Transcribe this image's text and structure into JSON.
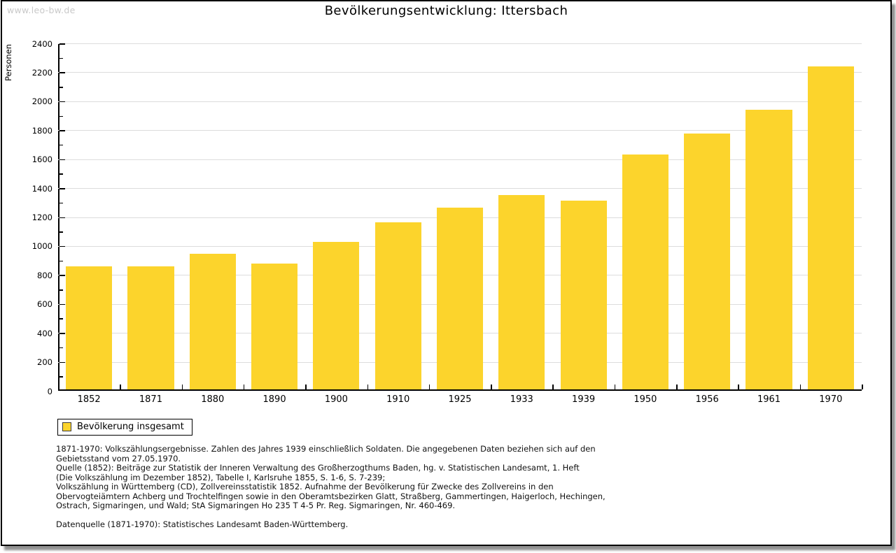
{
  "watermark": "www.leo-bw.de",
  "header": {
    "title": "Bevölkerungsentwicklung: Ittersbach"
  },
  "colors": {
    "bar_fill": "#FCD42C",
    "legend_swatch_border": "#3c3c3c",
    "gridline": "#dcdcdc",
    "axis": "#000000",
    "watermark_text": "#c9c9c9",
    "page_shadow": "#919191"
  },
  "chart_data": {
    "type": "bar",
    "title": "Bevölkerungsentwicklung: Ittersbach",
    "xlabel": "",
    "ylabel": "Personen",
    "categories": [
      "1852",
      "1871",
      "1880",
      "1890",
      "1900",
      "1910",
      "1925",
      "1933",
      "1939",
      "1950",
      "1956",
      "1961",
      "1970"
    ],
    "values": [
      860,
      860,
      945,
      880,
      1030,
      1165,
      1265,
      1350,
      1315,
      1630,
      1775,
      1940,
      2240
    ],
    "series_name": "Bevölkerung insgesamt",
    "ylim": [
      0,
      2400
    ],
    "ytick_step": 200,
    "yminor_step": 100,
    "grid": "horizontal-only",
    "legend_position": "bottom-left",
    "bar_color": "#FCD42C"
  },
  "legend": {
    "label": "Bevölkerung insgesamt"
  },
  "footer": {
    "lines": [
      "1871-1970: Volkszählungsergebnisse. Zahlen des Jahres 1939 einschließlich Soldaten. Die angegebenen Daten beziehen sich auf den",
      "Gebietsstand vom 27.05.1970.",
      "Quelle (1852): Beiträge zur Statistik der Inneren Verwaltung des Großherzogthums Baden, hg. v. Statistischen Landesamt, 1. Heft",
      "(Die Volkszählung im Dezember 1852), Tabelle I, Karlsruhe 1855, S. 1-6, S. 7-239;",
      "Volkszählung in Württemberg (CD), Zollvereinsstatistik 1852. Aufnahme der Bevölkerung für Zwecke des Zollvereins in den",
      "Obervogteiämtern Achberg und Trochtelfingen sowie in den Oberamtsbezirken Glatt, Straßberg, Gammertingen, Haigerloch, Hechingen,",
      "Ostrach, Sigmaringen, und Wald; StA Sigmaringen Ho 235 T 4-5 Pr. Reg. Sigmaringen, Nr. 460-469.",
      "",
      "Datenquelle (1871-1970): Statistisches Landesamt Baden-Württemberg."
    ]
  }
}
